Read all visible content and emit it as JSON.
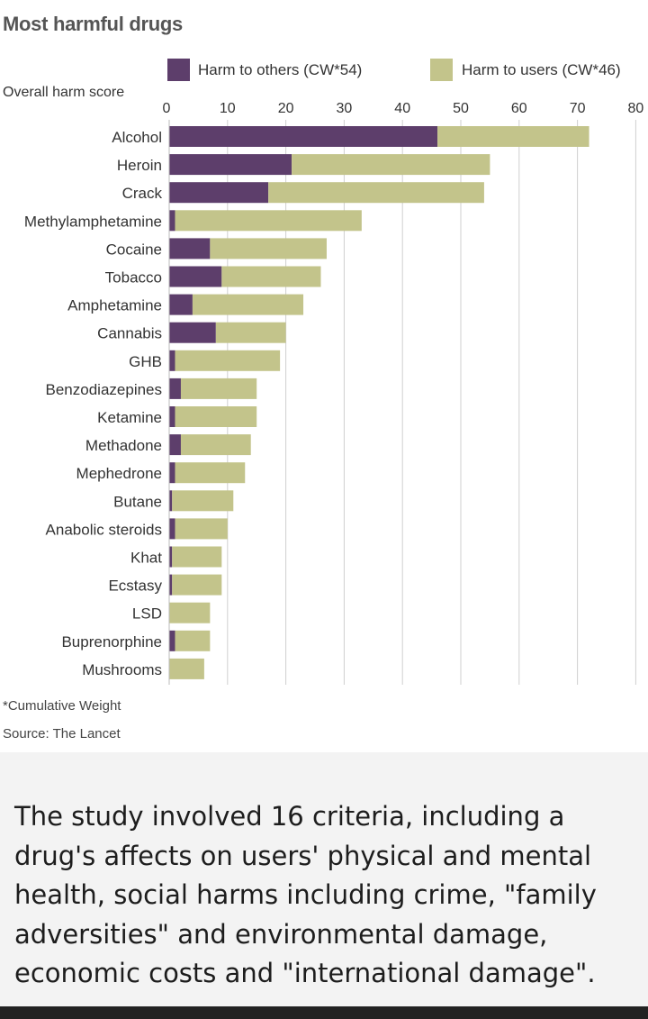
{
  "chart_data": {
    "type": "bar",
    "orientation": "horizontal",
    "stacked": true,
    "title": "Most harmful drugs",
    "ylabel": "Overall harm score",
    "xlim": [
      0,
      80
    ],
    "xticks": [
      0,
      10,
      20,
      30,
      40,
      50,
      60,
      70,
      80
    ],
    "grid": true,
    "legend_position": "top",
    "categories": [
      "Alcohol",
      "Heroin",
      "Crack",
      "Methylamphetamine",
      "Cocaine",
      "Tobacco",
      "Amphetamine",
      "Cannabis",
      "GHB",
      "Benzodiazepines",
      "Ketamine",
      "Methadone",
      "Mephedrone",
      "Butane",
      "Anabolic steroids",
      "Khat",
      "Ecstasy",
      "LSD",
      "Buprenorphine",
      "Mushrooms"
    ],
    "series": [
      {
        "name": "Harm to others (CW*54)",
        "color": "#5d3e6b",
        "values": [
          46,
          21,
          17,
          1,
          7,
          9,
          4,
          8,
          1,
          2,
          1,
          2,
          1,
          0.5,
          1,
          0.5,
          0.5,
          0,
          1,
          0
        ]
      },
      {
        "name": "Harm to users (CW*46)",
        "color": "#c3c48b",
        "values": [
          26,
          34,
          37,
          32,
          20,
          17,
          19,
          12,
          18,
          13,
          14,
          12,
          12,
          10.5,
          9,
          8.5,
          8.5,
          7,
          6,
          6
        ]
      }
    ]
  },
  "footnotes": {
    "weight_note": "*Cumulative Weight",
    "source": "Source: The Lancet"
  },
  "caption": "The study involved 16 criteria, including a drug's affects on users' physical and mental health, social harms including crime, \"family adversities\" and environmental damage, economic costs and \"international damage\"."
}
